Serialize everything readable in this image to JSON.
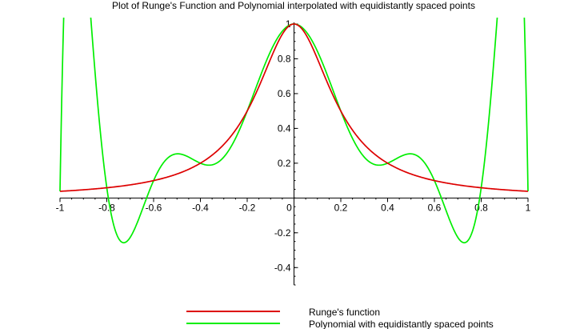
{
  "chart_data": {
    "type": "line",
    "title": "Plot of Runge's Function and Polynomial interpolated with equidistantly spaced points",
    "xlim": [
      -1,
      1
    ],
    "ylim": [
      -0.5,
      1
    ],
    "x_ticks": [
      {
        "value": -1,
        "label": "-1"
      },
      {
        "value": -0.8,
        "label": "-0.8"
      },
      {
        "value": -0.6,
        "label": "-0.6"
      },
      {
        "value": -0.4,
        "label": "-0.4"
      },
      {
        "value": -0.2,
        "label": "-0.2"
      },
      {
        "value": 0,
        "label": "0"
      },
      {
        "value": 0.2,
        "label": "0.2"
      },
      {
        "value": 0.4,
        "label": "0.4"
      },
      {
        "value": 0.6,
        "label": "0.6"
      },
      {
        "value": 0.8,
        "label": "0.8"
      },
      {
        "value": 1,
        "label": "1"
      }
    ],
    "y_ticks": [
      {
        "value": -0.4,
        "label": "-0.4"
      },
      {
        "value": -0.2,
        "label": "-0.2"
      },
      {
        "value": 0.2,
        "label": "0.2"
      },
      {
        "value": 0.4,
        "label": "0.4"
      },
      {
        "value": 0.6,
        "label": "0.6"
      },
      {
        "value": 0.8,
        "label": "0.8"
      },
      {
        "value": 1,
        "label": "1"
      }
    ],
    "grid": false,
    "legend_position": "bottom",
    "series": [
      {
        "name": "Runge's function",
        "color": "#dd0000",
        "formula": "1/(1+25x^2)",
        "x": [
          -1,
          -0.9,
          -0.8,
          -0.7,
          -0.6,
          -0.5,
          -0.4,
          -0.3,
          -0.2,
          -0.1,
          0,
          0.1,
          0.2,
          0.3,
          0.4,
          0.5,
          0.6,
          0.7,
          0.8,
          0.9,
          1
        ],
        "y": [
          0.038,
          0.047,
          0.059,
          0.075,
          0.1,
          0.138,
          0.2,
          0.308,
          0.5,
          0.8,
          1,
          0.8,
          0.5,
          0.308,
          0.2,
          0.138,
          0.1,
          0.075,
          0.059,
          0.047,
          0.038
        ]
      },
      {
        "name": "Polynomial with equidistantly spaced points",
        "color": "#00ee00",
        "interpolation_nodes": [
          -1,
          -0.8,
          -0.6,
          -0.4,
          -0.2,
          0,
          0.2,
          0.4,
          0.6,
          0.8,
          1
        ],
        "y_at_nodes": [
          0.038,
          0.059,
          0.1,
          0.2,
          0.5,
          1,
          0.5,
          0.2,
          0.1,
          0.059,
          0.038
        ],
        "extrema": [
          {
            "x": -0.73,
            "y": -0.26
          },
          {
            "x": -0.5,
            "y": 0.25
          },
          {
            "x": -0.35,
            "y": 0.19
          },
          {
            "x": 0.35,
            "y": 0.19
          },
          {
            "x": 0.5,
            "y": 0.25
          },
          {
            "x": 0.73,
            "y": -0.26
          }
        ]
      }
    ]
  }
}
